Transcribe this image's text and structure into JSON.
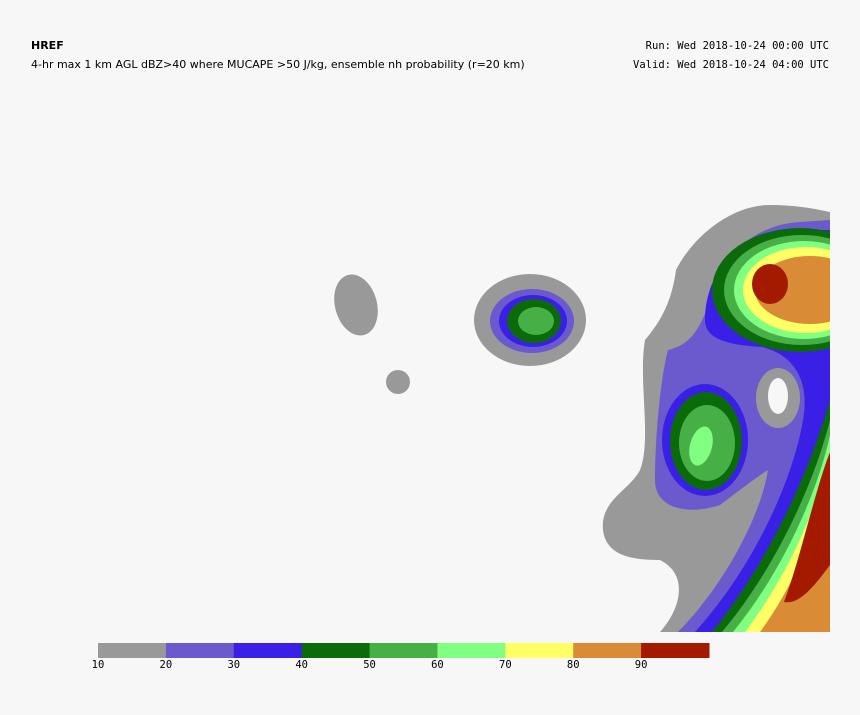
{
  "header": {
    "title": "HREF",
    "subtitle": "4-hr max 1 km AGL dBZ>40 where MUCAPE >50 J/kg, ensemble nh probability (r=20 km)",
    "run": "Run: Wed 2018-10-24 00:00 UTC",
    "valid": "Valid: Wed 2018-10-24 04:00 UTC"
  },
  "colorbar": {
    "ticks": [
      10,
      20,
      30,
      40,
      50,
      60,
      70,
      80,
      90
    ],
    "colors": [
      "#999999",
      "#6a5acd",
      "#3a1fe6",
      "#0b6b0b",
      "#46b046",
      "#80ff80",
      "#ffff66",
      "#d98c35",
      "#a41a00"
    ]
  }
}
